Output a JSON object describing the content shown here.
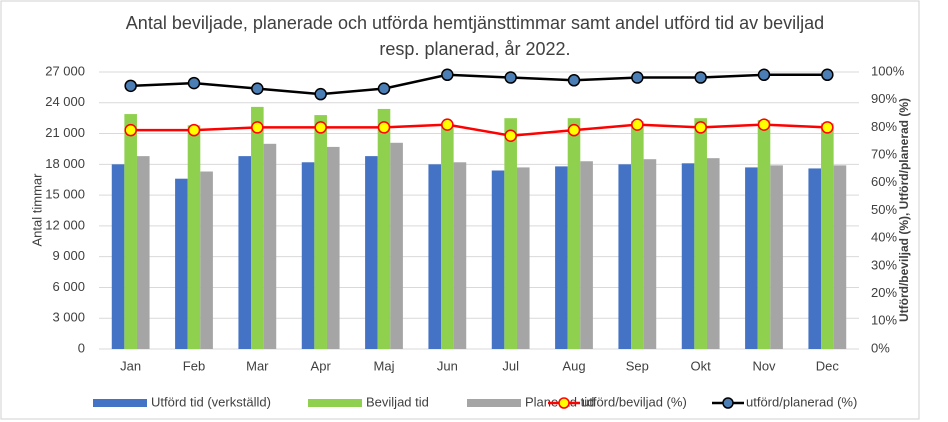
{
  "chart_data": {
    "type": "bar",
    "title": "Antal beviljade, planerade och utförda hemtjänsttimmar samt andel utförd tid av beviljad resp. planerad, år 2022.",
    "y_label": "Antal timmar",
    "y2_label": "Utförd/beviljad (%), Utförd/planerad (%)",
    "categories": [
      "Jan",
      "Feb",
      "Mar",
      "Apr",
      "Maj",
      "Jun",
      "Jul",
      "Aug",
      "Sep",
      "Okt",
      "Nov",
      "Dec"
    ],
    "ylim": [
      0,
      27000
    ],
    "yticks": [
      0,
      {
        "value": 3000,
        "label": "3 000"
      },
      {
        "value": 6000,
        "label": "6 000"
      },
      {
        "value": 9000,
        "label": "9 000"
      },
      {
        "value": 12000,
        "label": "12 000"
      },
      {
        "value": 15000,
        "label": "15 000"
      },
      {
        "value": 18000,
        "label": "18 000"
      },
      {
        "value": 21000,
        "label": "21 000"
      },
      {
        "value": 24000,
        "label": "24 000"
      },
      {
        "value": 27000,
        "label": "27 000"
      }
    ],
    "y2lim": [
      0,
      100
    ],
    "y2ticks": [
      {
        "value": 0,
        "label": "0%"
      },
      {
        "value": 10,
        "label": "10%"
      },
      {
        "value": 20,
        "label": "20%"
      },
      {
        "value": 30,
        "label": "30%"
      },
      {
        "value": 40,
        "label": "40%"
      },
      {
        "value": 50,
        "label": "50%"
      },
      {
        "value": 60,
        "label": "60%"
      },
      {
        "value": 70,
        "label": "70%"
      },
      {
        "value": 80,
        "label": "80%"
      },
      {
        "value": 90,
        "label": "90%"
      },
      {
        "value": 100,
        "label": "100%"
      }
    ],
    "series": [
      {
        "name": "Utförd tid (verkställd)",
        "type": "bar",
        "color": "#4472c4",
        "values": [
          18000,
          16600,
          18800,
          18200,
          18800,
          18000,
          17400,
          17800,
          18000,
          18100,
          17700,
          17600
        ]
      },
      {
        "name": "Beviljad tid",
        "type": "bar",
        "color": "#8fd14f",
        "values": [
          22900,
          21800,
          23600,
          22800,
          23400,
          22000,
          22500,
          22500,
          22200,
          22500,
          22300,
          22000
        ]
      },
      {
        "name": "Planerad tid",
        "type": "bar",
        "color": "#a5a5a5",
        "values": [
          18800,
          17300,
          20000,
          19700,
          20100,
          18200,
          17700,
          18300,
          18500,
          18600,
          17900,
          17900
        ]
      },
      {
        "name": "utförd/beviljad (%)",
        "type": "line",
        "axis": "y2",
        "color": "#ff0000",
        "marker_color": "#ffff00",
        "values": [
          79,
          79,
          80,
          80,
          80,
          81,
          77,
          79,
          81,
          80,
          81,
          80
        ]
      },
      {
        "name": "utförd/planerad (%)",
        "type": "line",
        "axis": "y2",
        "color": "#000000",
        "marker_color": "#4a7eb5",
        "values": [
          95,
          96,
          94,
          92,
          94,
          99,
          98,
          97,
          98,
          98,
          99,
          99
        ]
      }
    ]
  }
}
